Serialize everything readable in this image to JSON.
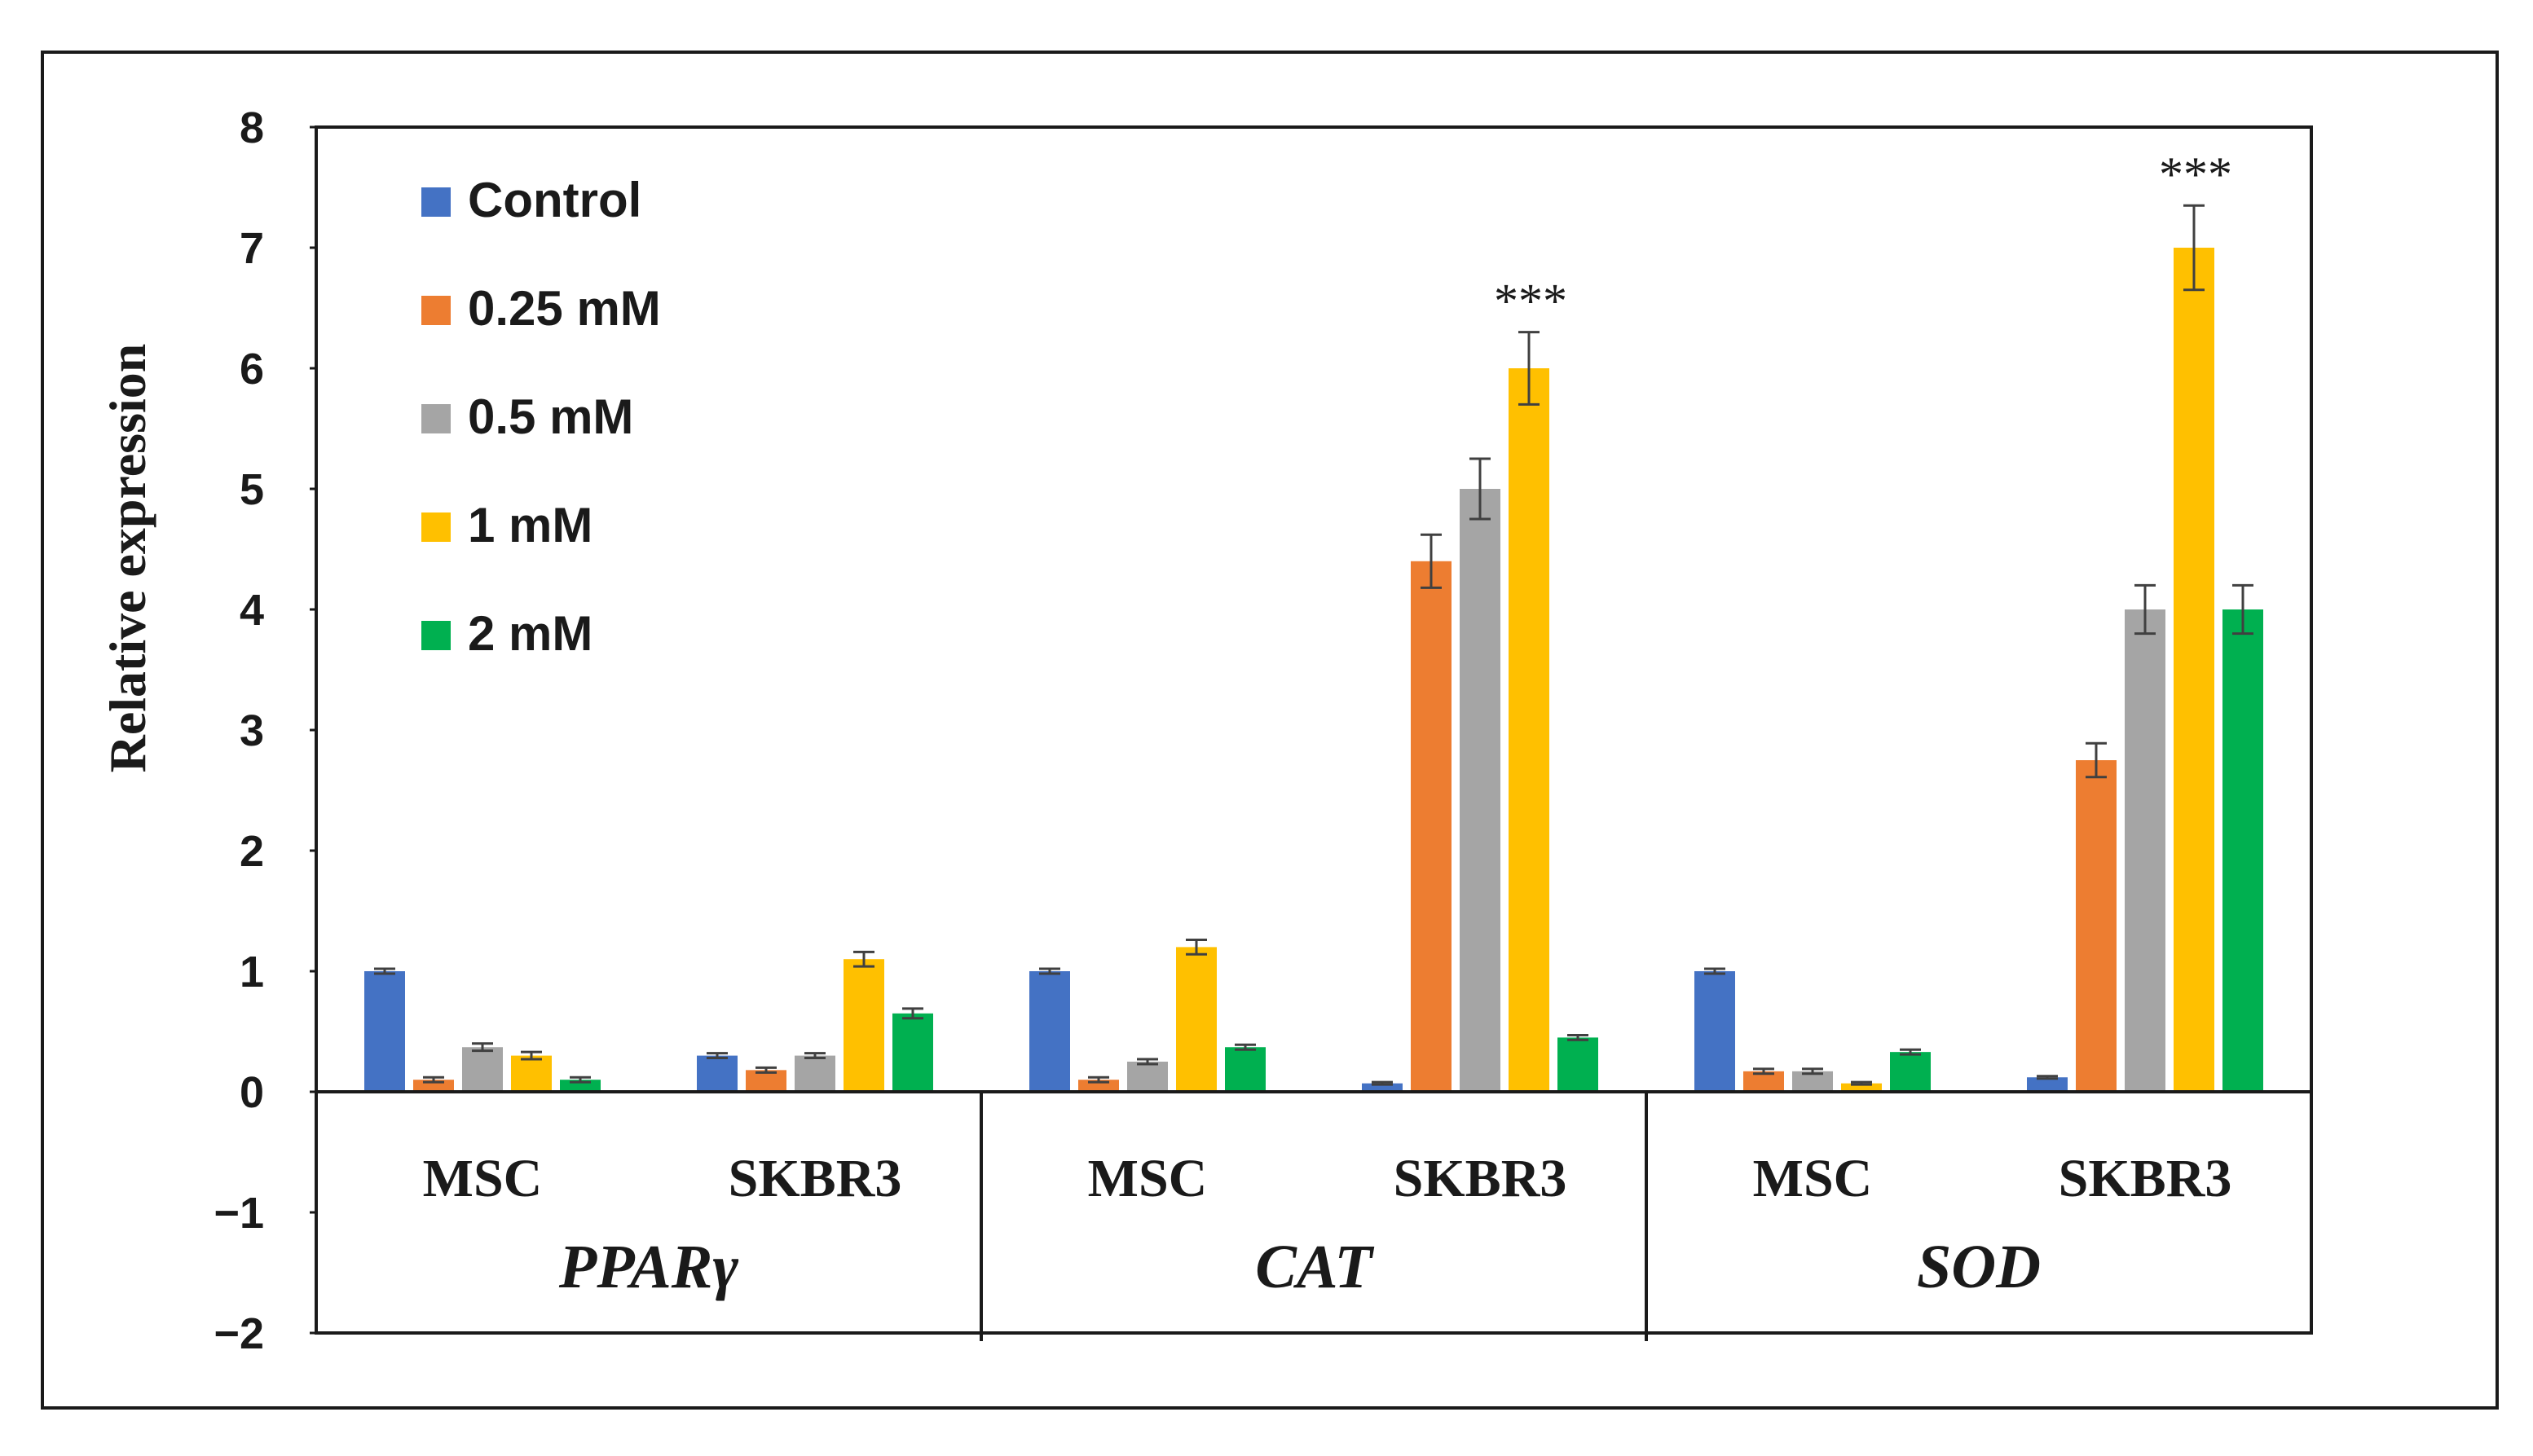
{
  "chart_data": {
    "type": "bar",
    "ylabel": "Relative expression",
    "ylim": [
      -2,
      8
    ],
    "yticks": [
      "−2",
      "−1",
      "0",
      "1",
      "2",
      "3",
      "4",
      "5",
      "6",
      "7",
      "8"
    ],
    "ytick_values": [
      -2,
      -1,
      0,
      1,
      2,
      3,
      4,
      5,
      6,
      7,
      8
    ],
    "legend_position": "top-left",
    "series": [
      {
        "name": "Control",
        "color": "#4472C4"
      },
      {
        "name": "0.25 mM",
        "color": "#ED7D31"
      },
      {
        "name": "0.5 mM",
        "color": "#A5A5A5"
      },
      {
        "name": "1 mM",
        "color": "#FFC000"
      },
      {
        "name": "2 mM",
        "color": "#00B050"
      }
    ],
    "genes": [
      {
        "name": "PPARγ",
        "groups": [
          {
            "name": "MSC",
            "values": [
              1.0,
              0.1,
              0.37,
              0.3,
              0.1
            ],
            "errors": [
              0.02,
              0.02,
              0.03,
              0.03,
              0.02
            ],
            "sig": ""
          },
          {
            "name": "SKBR3",
            "values": [
              0.3,
              0.18,
              0.3,
              1.1,
              0.65
            ],
            "errors": [
              0.02,
              0.02,
              0.02,
              0.06,
              0.04
            ],
            "sig": ""
          }
        ]
      },
      {
        "name": "CAT",
        "groups": [
          {
            "name": "MSC",
            "values": [
              1.0,
              0.1,
              0.25,
              1.2,
              0.37
            ],
            "errors": [
              0.02,
              0.02,
              0.02,
              0.06,
              0.02
            ],
            "sig": ""
          },
          {
            "name": "SKBR3",
            "values": [
              0.07,
              4.4,
              5.0,
              6.0,
              0.45
            ],
            "errors": [
              0.01,
              0.22,
              0.25,
              0.3,
              0.02
            ],
            "sig": "***"
          }
        ]
      },
      {
        "name": "SOD",
        "groups": [
          {
            "name": "MSC",
            "values": [
              1.0,
              0.17,
              0.17,
              0.07,
              0.33
            ],
            "errors": [
              0.02,
              0.02,
              0.02,
              0.01,
              0.02
            ],
            "sig": ""
          },
          {
            "name": "SKBR3",
            "values": [
              0.12,
              2.75,
              4.0,
              7.0,
              4.0
            ],
            "errors": [
              0.01,
              0.14,
              0.2,
              0.35,
              0.2
            ],
            "sig": "***"
          }
        ]
      }
    ]
  }
}
